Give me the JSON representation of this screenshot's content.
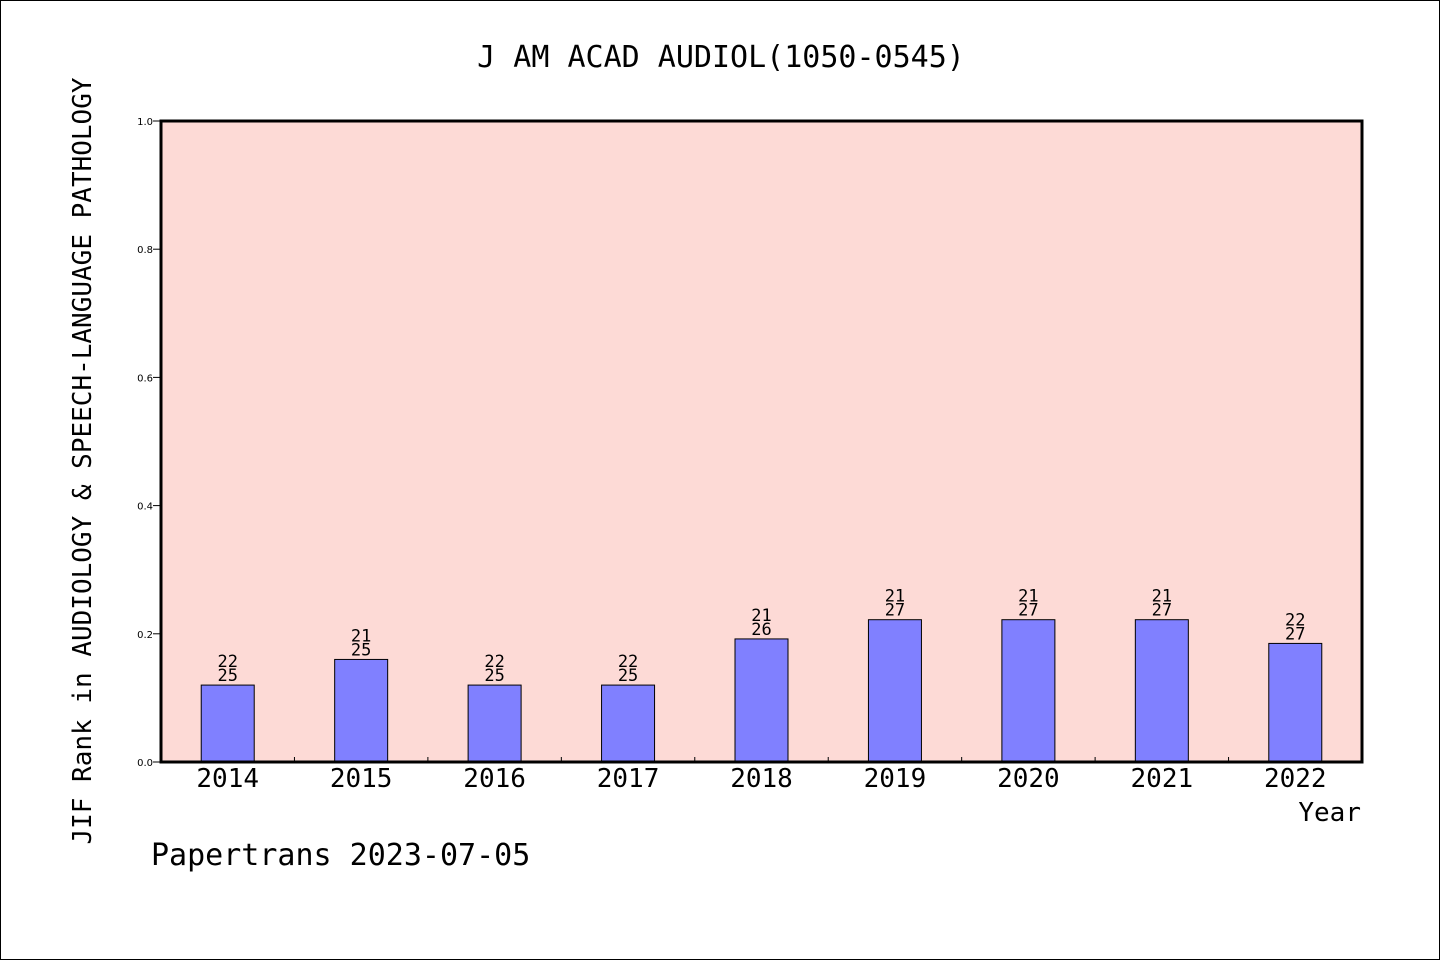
{
  "chart_data": {
    "type": "bar",
    "title": "J AM ACAD AUDIOL(1050-0545)",
    "xlabel": "Year",
    "ylabel": "JIF Rank in AUDIOLOGY & SPEECH-LANGUAGE PATHOLOGY",
    "ylim": [
      0,
      1.0
    ],
    "yticks": [
      "0.0",
      "0.2",
      "0.4",
      "0.6",
      "0.8",
      "1.0"
    ],
    "categories": [
      "2014",
      "2015",
      "2016",
      "2017",
      "2018",
      "2019",
      "2020",
      "2021",
      "2022"
    ],
    "values": [
      0.12,
      0.16,
      0.12,
      0.12,
      0.192,
      0.222,
      0.222,
      0.222,
      0.185
    ],
    "rank_labels": [
      {
        "rank": "22",
        "total": "25"
      },
      {
        "rank": "21",
        "total": "25"
      },
      {
        "rank": "22",
        "total": "25"
      },
      {
        "rank": "22",
        "total": "25"
      },
      {
        "rank": "21",
        "total": "26"
      },
      {
        "rank": "21",
        "total": "27"
      },
      {
        "rank": "21",
        "total": "27"
      },
      {
        "rank": "21",
        "total": "27"
      },
      {
        "rank": "22",
        "total": "27"
      }
    ],
    "grid": false,
    "colors": {
      "plot_background": "#fddad6",
      "bar_fill": "#8080ff",
      "bar_stroke": "#000000"
    }
  },
  "footer": {
    "credit": "Papertrans 2023-07-05"
  }
}
